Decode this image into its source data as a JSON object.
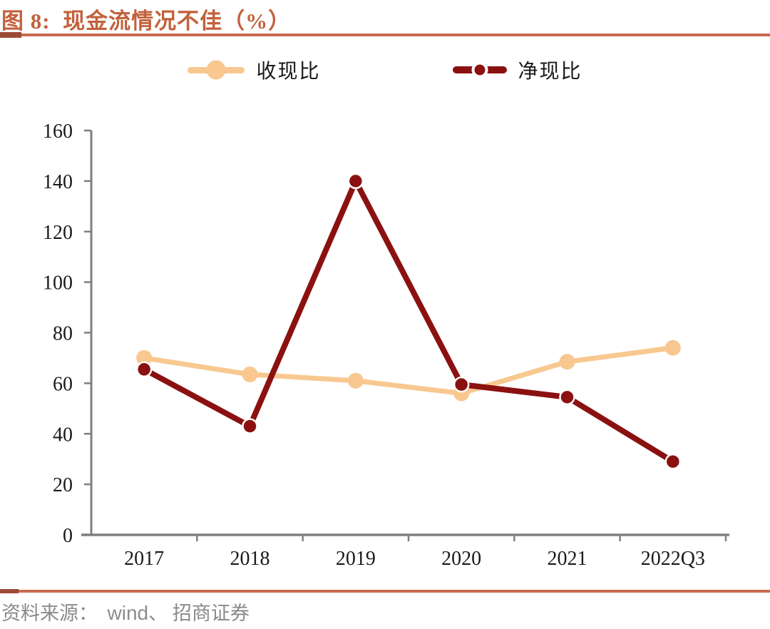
{
  "figure": {
    "title": "图 8:  现金流情况不佳（%）",
    "accent_color": "#C2613C",
    "rule_color": "#C96A52",
    "source": {
      "prefix": "资料来源：  ",
      "vendor": "wind",
      "suffix": "、 招商证券",
      "color": "#8A8A8A"
    }
  },
  "chart_data": {
    "type": "line",
    "title": "现金流情况不佳（%）",
    "categories": [
      "2017",
      "2018",
      "2019",
      "2020",
      "2021",
      "2022Q3"
    ],
    "series": [
      {
        "name": "收现比",
        "color": "#F8C890",
        "values": [
          70,
          63.5,
          61,
          56,
          68.5,
          74
        ],
        "line_width": 7,
        "marker_radius": 11
      },
      {
        "name": "净现比",
        "color": "#8B1111",
        "values": [
          65.5,
          43,
          140,
          59.5,
          54.5,
          29
        ],
        "line_width": 8,
        "marker_radius": 10
      }
    ],
    "xlabel": "",
    "ylabel": "",
    "ylim": [
      0,
      160
    ],
    "yticks": [
      0,
      20,
      40,
      60,
      80,
      100,
      120,
      140,
      160
    ],
    "grid": false,
    "legend_position": "top",
    "axis_color": "#7F7F7F",
    "tick_label_color": "#1A1A1A"
  }
}
